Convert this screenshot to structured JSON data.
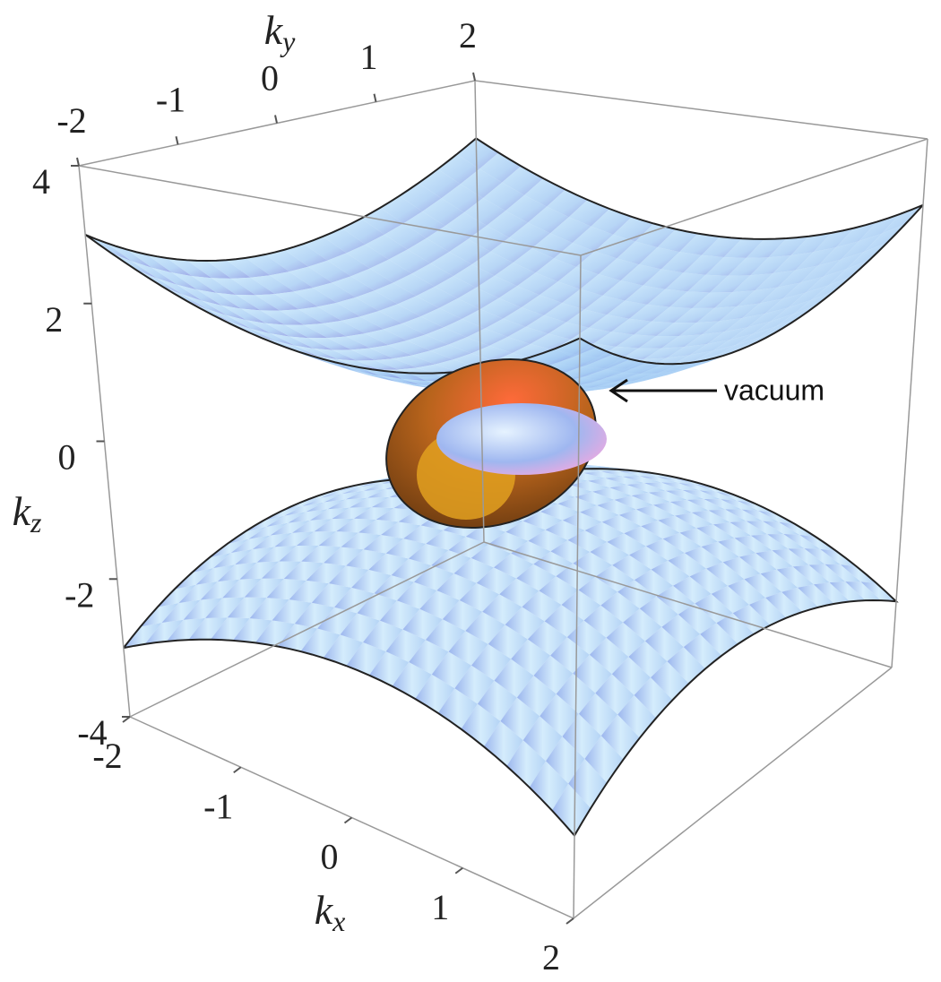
{
  "chart_data": {
    "type": "surface3d",
    "xlabel": "kx",
    "ylabel": "ky",
    "zlabel": "kz",
    "xlim": [
      -2,
      2
    ],
    "ylim": [
      -2,
      2
    ],
    "zlim": [
      -4,
      4
    ],
    "xticks": [
      -2,
      -1,
      0,
      1,
      2
    ],
    "yticks": [
      -2,
      -1,
      0,
      1,
      2
    ],
    "zticks": [
      -4,
      -2,
      0,
      2,
      4
    ],
    "annotation": "vacuum"
  }
}
